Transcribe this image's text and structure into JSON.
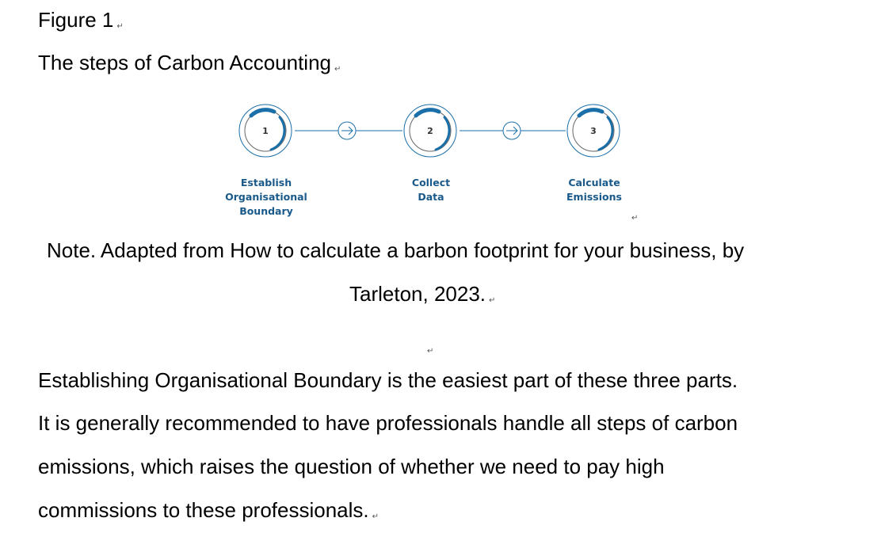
{
  "figure": {
    "caption": "Figure 1",
    "title": "The steps of Carbon Accounting",
    "steps": [
      {
        "number": "1",
        "label_lines": [
          "Establish",
          "Organisational",
          "Boundary"
        ]
      },
      {
        "number": "2",
        "label_lines": [
          "Collect",
          "Data"
        ]
      },
      {
        "number": "3",
        "label_lines": [
          "Calculate",
          "Emissions"
        ]
      }
    ],
    "note_line_1": "Note. Adapted from How to calculate a barbon footprint for your business, by",
    "note_line_2": "Tarleton, 2023."
  },
  "body": {
    "lines": [
      "Establishing Organisational Boundary is the easiest part of these three parts.",
      "It is generally recommended to have professionals handle all steps of carbon",
      "emissions, which raises the question of whether we need to pay high",
      "commissions to these professionals."
    ]
  },
  "paragraph_mark": "↵",
  "colors": {
    "accent": "#1a6fa8",
    "ring": "#555555",
    "label": "#1a5a8a"
  }
}
